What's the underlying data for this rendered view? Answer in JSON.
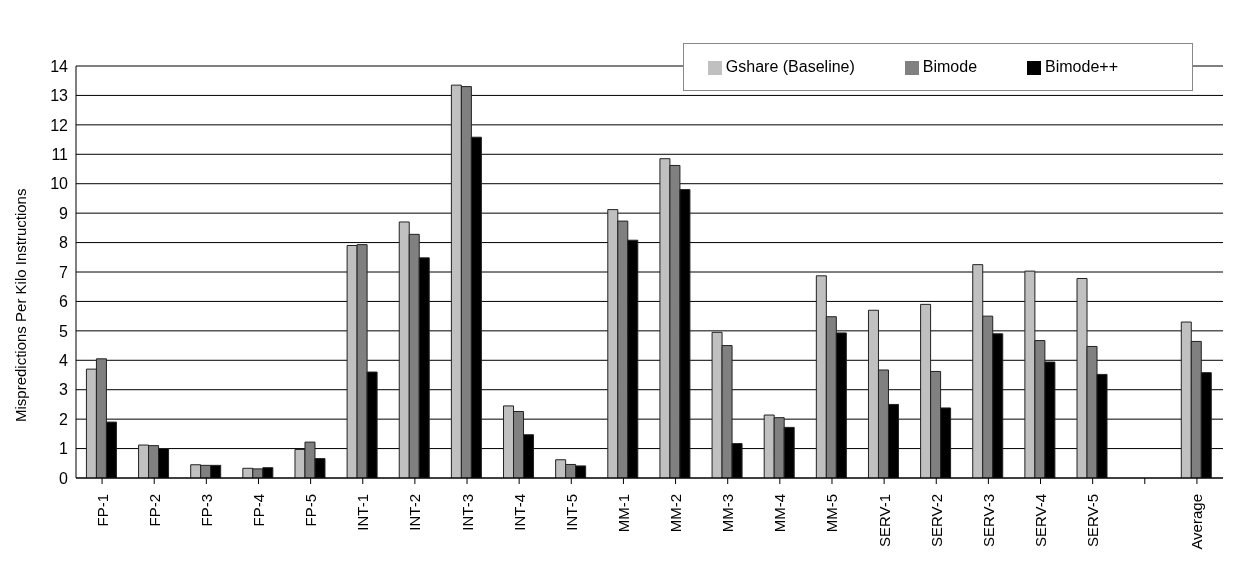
{
  "chart_data": {
    "type": "bar",
    "ylabel": "Mispredictions Per Kilo Instructions",
    "categories": [
      "FP-1",
      "FP-2",
      "FP-3",
      "FP-4",
      "FP-5",
      "INT-1",
      "INT-2",
      "INT-3",
      "INT-4",
      "INT-5",
      "MM-1",
      "MM-2",
      "MM-3",
      "MM-4",
      "MM-5",
      "SERV-1",
      "SERV-2",
      "SERV-3",
      "SERV-4",
      "SERV-5",
      null,
      "Average"
    ],
    "series": [
      {
        "name": "Gshare (Baseline)",
        "color": "#c0c0c0",
        "values": [
          3.7,
          1.12,
          0.45,
          0.33,
          0.97,
          7.9,
          8.7,
          13.35,
          2.45,
          0.62,
          9.12,
          10.85,
          4.95,
          2.14,
          6.87,
          5.7,
          5.9,
          7.25,
          7.03,
          6.78,
          null,
          5.3
        ]
      },
      {
        "name": "Bimode",
        "color": "#808080",
        "values": [
          4.05,
          1.1,
          0.43,
          0.31,
          1.22,
          7.93,
          8.28,
          13.3,
          2.26,
          0.46,
          8.73,
          10.62,
          4.5,
          2.05,
          5.48,
          3.67,
          3.62,
          5.5,
          4.67,
          4.47,
          null,
          4.64
        ]
      },
      {
        "name": "Bimode++",
        "color": "#000000",
        "values": [
          1.9,
          1.0,
          0.43,
          0.35,
          0.66,
          3.6,
          7.48,
          11.58,
          1.47,
          0.41,
          8.08,
          9.8,
          1.17,
          1.72,
          4.93,
          2.5,
          2.38,
          4.9,
          3.94,
          3.52,
          null,
          3.58
        ]
      }
    ],
    "ylim": [
      0,
      14
    ],
    "yticks": [
      0,
      1,
      2,
      3,
      4,
      5,
      6,
      7,
      8,
      9,
      10,
      11,
      12,
      13,
      14
    ],
    "grid": "y",
    "legend": "top right"
  }
}
